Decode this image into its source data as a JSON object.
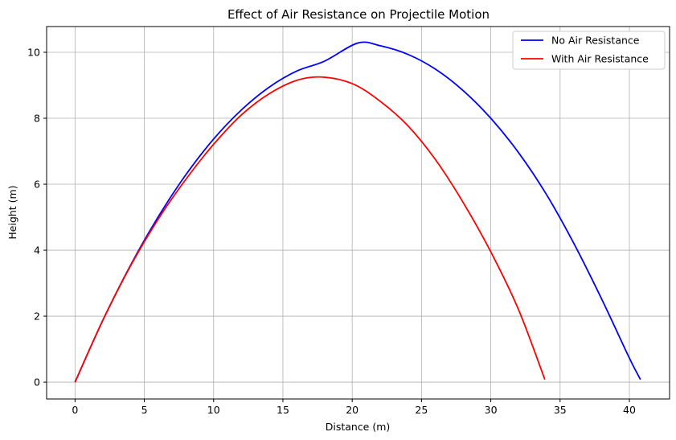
{
  "chart_data": {
    "type": "line",
    "title": "Effect of Air Resistance on Projectile Motion",
    "xlabel": "Distance (m)",
    "ylabel": "Height (m)",
    "xlim": [
      -2.05,
      42.9
    ],
    "ylim": [
      -0.51,
      10.78
    ],
    "xticks": [
      0,
      5,
      10,
      15,
      20,
      25,
      30,
      35,
      40
    ],
    "yticks": [
      0,
      2,
      4,
      6,
      8,
      10
    ],
    "grid": true,
    "legend_position": "top-right",
    "series": [
      {
        "name": "No Air Resistance",
        "color": "#0000ff",
        "x": [
          0,
          2,
          4,
          6,
          8,
          10,
          12,
          14,
          16,
          18,
          20.4,
          22,
          24,
          26,
          28,
          30,
          32,
          34,
          36,
          38,
          40,
          40.8
        ],
        "y": [
          0,
          1.87,
          3.54,
          5.01,
          6.29,
          7.37,
          8.25,
          8.94,
          9.43,
          9.73,
          10.28,
          10.2,
          9.94,
          9.49,
          8.84,
          8.0,
          6.96,
          5.7,
          4.2,
          2.52,
          0.73,
          0.08
        ]
      },
      {
        "name": "With Air Resistance",
        "color": "#ff0000",
        "x": [
          0,
          2,
          4,
          6,
          8,
          10,
          12,
          14,
          16,
          17.8,
          20,
          22,
          24,
          26,
          28,
          30,
          32,
          33.9
        ],
        "y": [
          0,
          1.87,
          3.52,
          4.94,
          6.15,
          7.21,
          8.1,
          8.74,
          9.15,
          9.25,
          9.05,
          8.52,
          7.78,
          6.75,
          5.45,
          3.95,
          2.2,
          0.08
        ]
      }
    ]
  }
}
